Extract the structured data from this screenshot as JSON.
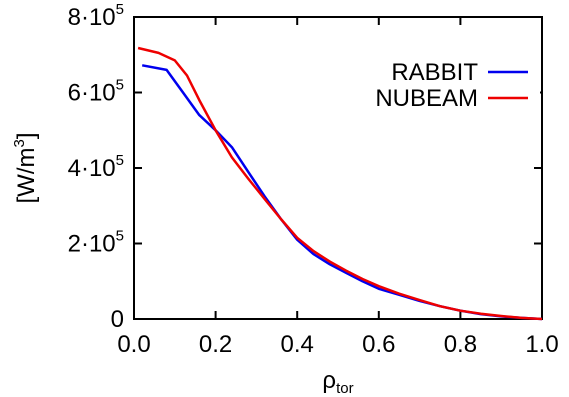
{
  "chart_data": {
    "type": "line",
    "xlabel": "ρ",
    "xlabel_sub": "tor",
    "ylabel": "[W/m",
    "ylabel_sup": "3",
    "ylabel_close": "]",
    "xlim": [
      0,
      1
    ],
    "ylim": [
      0,
      800000
    ],
    "x_ticks": [
      {
        "value": 0.0,
        "label": "0.0"
      },
      {
        "value": 0.2,
        "label": "0.2"
      },
      {
        "value": 0.4,
        "label": "0.4"
      },
      {
        "value": 0.6,
        "label": "0.6"
      },
      {
        "value": 0.8,
        "label": "0.8"
      },
      {
        "value": 1.0,
        "label": "1.0"
      }
    ],
    "y_ticks": [
      {
        "value": 0,
        "base": "0",
        "exp": ""
      },
      {
        "value": 200000,
        "base": "2·10",
        "exp": "5"
      },
      {
        "value": 400000,
        "base": "4·10",
        "exp": "5"
      },
      {
        "value": 600000,
        "base": "6·10",
        "exp": "5"
      },
      {
        "value": 800000,
        "base": "8·10",
        "exp": "5"
      }
    ],
    "grid": false,
    "legend_position": "top-right",
    "series": [
      {
        "name": "RABBIT",
        "color": "#0000ee",
        "x": [
          0.02,
          0.08,
          0.12,
          0.16,
          0.2,
          0.24,
          0.28,
          0.32,
          0.36,
          0.4,
          0.44,
          0.48,
          0.52,
          0.56,
          0.6,
          0.65,
          0.7,
          0.75,
          0.8,
          0.85,
          0.9,
          0.95,
          1.0
        ],
        "y": [
          672000,
          660000,
          600000,
          540000,
          500000,
          455000,
          390000,
          325000,
          265000,
          210000,
          172000,
          145000,
          122000,
          100000,
          80000,
          64000,
          48000,
          34000,
          22000,
          13000,
          7000,
          3000,
          0
        ]
      },
      {
        "name": "NUBEAM",
        "color": "#ee0000",
        "x": [
          0.01,
          0.06,
          0.1,
          0.13,
          0.16,
          0.2,
          0.24,
          0.28,
          0.32,
          0.36,
          0.4,
          0.44,
          0.48,
          0.52,
          0.56,
          0.6,
          0.65,
          0.7,
          0.75,
          0.8,
          0.85,
          0.9,
          0.95,
          1.0
        ],
        "y": [
          718000,
          705000,
          685000,
          645000,
          580000,
          500000,
          428000,
          372000,
          318000,
          265000,
          215000,
          180000,
          152000,
          128000,
          106000,
          87000,
          67000,
          50000,
          34000,
          22000,
          14000,
          8000,
          3000,
          0
        ]
      }
    ]
  }
}
